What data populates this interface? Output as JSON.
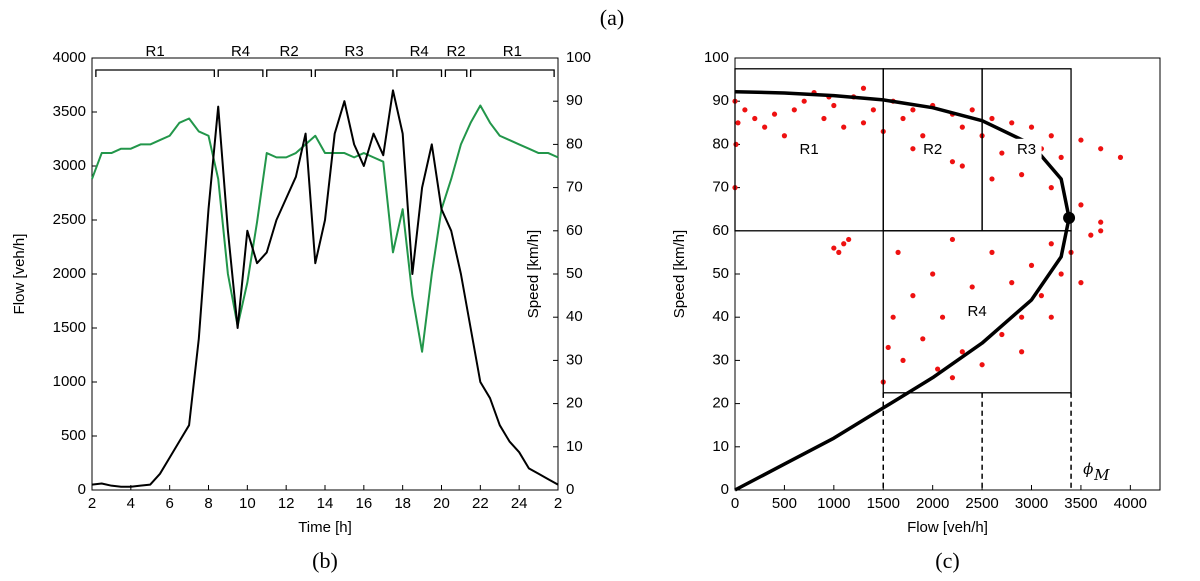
{
  "figure_label": "(a)",
  "chart_data": [
    {
      "type": "line",
      "subtitle": "(b)",
      "x_label": "Time [h]",
      "y_label": "Flow [veh/h]",
      "y2_label": "Speed [km/h]",
      "x": [
        2,
        2.5,
        3,
        3.5,
        4,
        4.5,
        5,
        5.5,
        6,
        6.5,
        7,
        7.5,
        8,
        8.5,
        9,
        9.5,
        10,
        10.5,
        11,
        11.5,
        12,
        12.5,
        13,
        13.5,
        14,
        14.5,
        15,
        15.5,
        16,
        16.5,
        17,
        17.5,
        18,
        18.5,
        19,
        19.5,
        20,
        20.5,
        21,
        21.5,
        22,
        22.5,
        23,
        23.5,
        24,
        24.5,
        25,
        25.5,
        26
      ],
      "series": [
        {
          "color": "#000000",
          "values": [
            50,
            60,
            40,
            30,
            30,
            40,
            50,
            150,
            300,
            450,
            600,
            1400,
            2600,
            3550,
            2400,
            1500,
            2400,
            2100,
            2200,
            2500,
            2700,
            2900,
            3300,
            2100,
            2500,
            3300,
            3600,
            3200,
            3000,
            3300,
            3100,
            3700,
            3300,
            2000,
            2800,
            3200,
            2600,
            2400,
            2000,
            1500,
            1000,
            850,
            600,
            450,
            350,
            200,
            150,
            100,
            50
          ]
        },
        {
          "color": "#22964a",
          "axis": "y2",
          "values": [
            72,
            78,
            78,
            79,
            79,
            80,
            80,
            81,
            82,
            85,
            86,
            83,
            82,
            72,
            50,
            38,
            48,
            62,
            78,
            77,
            77,
            78,
            80,
            82,
            78,
            78,
            78,
            77,
            78,
            77,
            76,
            55,
            65,
            45,
            32,
            50,
            65,
            72,
            80,
            85,
            89,
            85,
            82,
            81,
            80,
            79,
            78,
            78,
            77
          ]
        }
      ],
      "xlim": [
        2,
        26
      ],
      "xticks": [
        2,
        4,
        6,
        8,
        10,
        12,
        14,
        16,
        18,
        20,
        22,
        24,
        {
          "value": 26,
          "label": "2"
        }
      ],
      "ylim": [
        0,
        4000
      ],
      "yticks": [
        0,
        500,
        1000,
        1500,
        2000,
        2500,
        3000,
        3500,
        4000
      ],
      "y2lim": [
        0,
        100
      ],
      "y2ticks": [
        0,
        10,
        20,
        30,
        40,
        50,
        60,
        70,
        80,
        90,
        100
      ],
      "regions": [
        {
          "label": "R1",
          "start": 2.2,
          "end": 8.3
        },
        {
          "label": "R4",
          "start": 8.5,
          "end": 10.8
        },
        {
          "label": "R2",
          "start": 11,
          "end": 13.3
        },
        {
          "label": "R3",
          "start": 13.5,
          "end": 17.5
        },
        {
          "label": "R4",
          "start": 17.7,
          "end": 20
        },
        {
          "label": "R2",
          "start": 20.2,
          "end": 21.3
        },
        {
          "label": "R1",
          "start": 21.5,
          "end": 25.8
        }
      ]
    },
    {
      "type": "scatter",
      "subtitle": "(c)",
      "x_label": "Flow [veh/h]",
      "y_label": "Speed [km/h]",
      "color": "#ee1111",
      "x": [
        0,
        0,
        10,
        30,
        100,
        200,
        300,
        400,
        500,
        600,
        700,
        800,
        900,
        1000,
        1100,
        1200,
        1300,
        1400,
        1500,
        1600,
        1700,
        1800,
        1900,
        2000,
        2100,
        2200,
        2300,
        2400,
        2500,
        2600,
        2700,
        2800,
        2900,
        3000,
        3100,
        3200,
        3300,
        3500,
        3700,
        3900,
        2300,
        2600,
        2900,
        3200,
        3500,
        3700,
        1800,
        2200,
        950,
        1300,
        1500,
        1600,
        1650,
        1700,
        1800,
        1900,
        2000,
        2050,
        2100,
        2200,
        2300,
        2400,
        2500,
        2550,
        2600,
        2700,
        2800,
        2900,
        3000,
        3100,
        3200,
        3300,
        3400,
        3500,
        3600,
        3200,
        2900,
        1550,
        2200,
        3700,
        1000,
        1100,
        1150,
        1050
      ],
      "y": [
        70,
        90,
        80,
        85,
        88,
        86,
        84,
        87,
        82,
        88,
        90,
        92,
        86,
        89,
        84,
        91,
        85,
        88,
        83,
        90,
        86,
        88,
        82,
        89,
        80,
        87,
        84,
        88,
        82,
        86,
        78,
        85,
        80,
        84,
        79,
        82,
        77,
        81,
        79,
        77,
        75,
        72,
        73,
        70,
        66,
        62,
        79,
        76,
        91,
        93,
        25,
        40,
        55,
        30,
        45,
        35,
        50,
        28,
        40,
        58,
        32,
        47,
        29,
        42,
        55,
        36,
        48,
        40,
        52,
        45,
        57,
        50,
        55,
        48,
        59,
        40,
        32,
        33,
        26,
        60,
        56,
        57,
        58,
        55
      ],
      "curve": {
        "color": "#000000",
        "x": [
          0,
          500,
          1000,
          1500,
          2000,
          2500,
          3000,
          3300,
          3380,
          3300,
          3000,
          2500,
          2000,
          1500,
          1000,
          500,
          0
        ],
        "y": [
          0,
          6,
          12,
          19,
          26,
          34,
          44,
          54,
          63,
          72,
          80,
          85.5,
          88.5,
          90.3,
          91.3,
          91.9,
          92.2
        ]
      },
      "capacity_point": {
        "x": 3380,
        "y": 63,
        "symbol": "ϕ",
        "subscript": "M"
      },
      "xlim": [
        0,
        4300
      ],
      "xticks": [
        0,
        500,
        1000,
        1500,
        2000,
        2500,
        3000,
        3500,
        4000
      ],
      "ylim": [
        0,
        100
      ],
      "yticks": [
        0,
        10,
        20,
        30,
        40,
        50,
        60,
        70,
        80,
        90,
        100
      ],
      "regions": [
        {
          "label": "R1",
          "x0": 0,
          "x1": 1500,
          "y0": 60,
          "y1": 97.5
        },
        {
          "label": "R2",
          "x0": 1500,
          "x1": 2500,
          "y0": 60,
          "y1": 97.5
        },
        {
          "label": "R3",
          "x0": 2500,
          "x1": 3400,
          "y0": 60,
          "y1": 97.5
        },
        {
          "label": "R4",
          "x0": 1500,
          "x1": 3400,
          "y0": 22.5,
          "y1": 60
        }
      ]
    }
  ]
}
